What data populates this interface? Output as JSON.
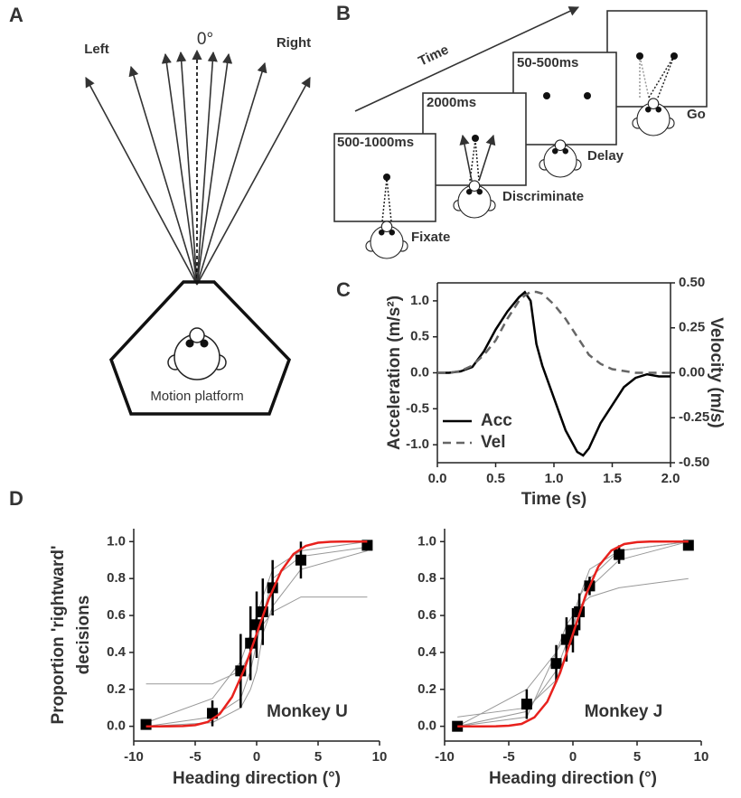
{
  "panel_labels": [
    "A",
    "B",
    "C",
    "D"
  ],
  "diagram_a": {
    "left": "Left",
    "center": "0°",
    "right": "Right",
    "platform": "Motion platform"
  },
  "diagram_b": {
    "axis": "Time",
    "stages": [
      {
        "duration": "500-1000ms",
        "name": "Fixate"
      },
      {
        "duration": "2000ms",
        "name": "Discriminate"
      },
      {
        "duration": "50-500ms",
        "name": "Delay"
      },
      {
        "name": "Go"
      }
    ]
  },
  "chart_data": [
    {
      "type": "line",
      "xlabel": "Time (s)",
      "ylabel": "Acceleration (m/s²)",
      "y2label": "Velocity (m/s)",
      "x": [
        0,
        0.1,
        0.2,
        0.3,
        0.4,
        0.5,
        0.6,
        0.7,
        0.75,
        0.8,
        0.85,
        0.9,
        1.0,
        1.1,
        1.2,
        1.25,
        1.3,
        1.4,
        1.5,
        1.6,
        1.7,
        1.8,
        1.9,
        2.0
      ],
      "series": [
        {
          "name": "Acc",
          "color": "#000000",
          "style": "solid",
          "values": [
            0,
            0,
            0.02,
            0.08,
            0.3,
            0.6,
            0.85,
            1.05,
            1.12,
            1.0,
            0.4,
            0.1,
            -0.35,
            -0.8,
            -1.1,
            -1.15,
            -1.05,
            -0.7,
            -0.45,
            -0.2,
            -0.07,
            -0.02,
            -0.05,
            -0.05
          ]
        },
        {
          "name": "Vel",
          "color": "#666666",
          "style": "dashed",
          "axis": "y2",
          "values": [
            0,
            0,
            0.01,
            0.04,
            0.1,
            0.18,
            0.3,
            0.4,
            0.43,
            0.45,
            0.45,
            0.44,
            0.38,
            0.3,
            0.2,
            0.15,
            0.1,
            0.05,
            0.02,
            0.01,
            0,
            0,
            0,
            0
          ]
        }
      ],
      "xlim": [
        0,
        2
      ],
      "xticks": [
        {
          "value": 0,
          "label": "0.0"
        },
        {
          "value": 0.5,
          "label": "0.5"
        },
        {
          "value": 1,
          "label": "1.0"
        },
        {
          "value": 1.5,
          "label": "1.5"
        },
        {
          "value": 2,
          "label": "2.0"
        }
      ],
      "ylim": [
        -1.25,
        1.25
      ],
      "yticks": [
        {
          "value": -1,
          "label": "-1.0"
        },
        {
          "value": -0.5,
          "label": "-0.5"
        },
        {
          "value": 0,
          "label": "0.0"
        },
        {
          "value": 0.5,
          "label": "0.5"
        },
        {
          "value": 1,
          "label": "1.0"
        }
      ],
      "y2lim": [
        -0.5,
        0.5
      ],
      "y2ticks": [
        {
          "value": -0.5,
          "label": "-0.50"
        },
        {
          "value": -0.25,
          "label": "-0.25"
        },
        {
          "value": 0,
          "label": "0.00"
        },
        {
          "value": 0.25,
          "label": "0.25"
        },
        {
          "value": 0.5,
          "label": "0.50"
        }
      ],
      "legend": "lower left",
      "frame": true
    },
    {
      "type": "scatter",
      "xlabel": "Heading direction (°)",
      "ylabel_lines": [
        "Proportion 'rightward'",
        "decisions"
      ],
      "annotation": "Monkey U",
      "x": [
        -9,
        -3.6,
        -1.3,
        -0.5,
        0,
        0.5,
        1.3,
        3.6,
        9
      ],
      "series": [
        {
          "color": "#999999",
          "style": "line",
          "values": [
            0,
            0.05,
            0.15,
            0.3,
            0.45,
            0.6,
            0.8,
            0.92,
            0.97
          ]
        },
        {
          "color": "#999999",
          "style": "line",
          "values": [
            0.02,
            0.15,
            0.35,
            0.5,
            0.6,
            0.7,
            0.85,
            0.95,
            1
          ]
        },
        {
          "color": "#999999",
          "style": "line",
          "values": [
            0.23,
            0.23,
            0.3,
            0.4,
            0.5,
            0.55,
            0.62,
            0.7,
            0.7
          ]
        },
        {
          "color": "#999999",
          "style": "line",
          "values": [
            0,
            0.02,
            0.1,
            0.2,
            0.3,
            0.5,
            0.65,
            0.85,
            0.95
          ]
        },
        {
          "color": "#000000",
          "style": "markers",
          "values": [
            0.01,
            0.07,
            0.3,
            0.45,
            0.55,
            0.62,
            0.75,
            0.9,
            0.98
          ],
          "errors": [
            0.02,
            0.07,
            0.2,
            0.2,
            0.18,
            0.18,
            0.15,
            0.1,
            0.02
          ]
        },
        {
          "color": "#e8211d",
          "style": "solid",
          "x": [
            -9,
            -8,
            -7,
            -6,
            -5,
            -4,
            -3,
            -2,
            -1,
            0,
            1,
            2,
            3,
            4,
            5,
            6,
            7,
            8,
            9
          ],
          "values": [
            0,
            0,
            0.0002,
            0.0013,
            0.006,
            0.023,
            0.067,
            0.159,
            0.309,
            0.5,
            0.691,
            0.841,
            0.933,
            0.977,
            0.994,
            0.999,
            1,
            1,
            1
          ]
        }
      ],
      "xlim": [
        -10,
        10
      ],
      "xticks": [
        -10,
        -5,
        0,
        5,
        10
      ],
      "ylim": [
        -0.08,
        1.07
      ],
      "yticks": [
        {
          "value": 0,
          "label": "0.0"
        },
        {
          "value": 0.2,
          "label": "0.2"
        },
        {
          "value": 0.4,
          "label": "0.4"
        },
        {
          "value": 0.6,
          "label": "0.6"
        },
        {
          "value": 0.8,
          "label": "0.8"
        },
        {
          "value": 1,
          "label": "1.0"
        }
      ]
    },
    {
      "type": "scatter",
      "xlabel": "Heading direction (°)",
      "annotation": "Monkey J",
      "x": [
        -9,
        -3.6,
        -1.3,
        -0.5,
        0,
        0.5,
        1.3,
        3.6,
        9
      ],
      "series": [
        {
          "color": "#999999",
          "style": "line",
          "values": [
            0,
            0.08,
            0.3,
            0.45,
            0.5,
            0.6,
            0.75,
            0.9,
            1
          ]
        },
        {
          "color": "#999999",
          "style": "line",
          "values": [
            0,
            0.2,
            0.4,
            0.5,
            0.55,
            0.65,
            0.7,
            0.75,
            0.8
          ]
        },
        {
          "color": "#999999",
          "style": "line",
          "values": [
            0.05,
            0.1,
            0.25,
            0.4,
            0.5,
            0.7,
            0.85,
            0.95,
            1
          ]
        },
        {
          "color": "#999999",
          "style": "line",
          "values": [
            0,
            0.05,
            0.4,
            0.55,
            0.6,
            0.7,
            0.8,
            0.95,
            1
          ]
        },
        {
          "color": "#000000",
          "style": "markers",
          "values": [
            0,
            0.12,
            0.34,
            0.47,
            0.52,
            0.62,
            0.76,
            0.93,
            0.98
          ],
          "errors": [
            0.01,
            0.08,
            0.1,
            0.12,
            0.12,
            0.1,
            0.05,
            0.05,
            0.02
          ]
        },
        {
          "color": "#e8211d",
          "style": "solid",
          "x": [
            -9,
            -8,
            -7,
            -6,
            -5,
            -4,
            -3,
            -2,
            -1,
            0,
            1,
            2,
            3,
            4,
            5,
            6,
            7,
            8,
            9
          ],
          "values": [
            0,
            0,
            0,
            0.0004,
            0.003,
            0.013,
            0.048,
            0.133,
            0.289,
            0.5,
            0.711,
            0.867,
            0.952,
            0.987,
            0.997,
            1,
            1,
            1,
            1
          ]
        }
      ],
      "xlim": [
        -10,
        10
      ],
      "xticks": [
        -10,
        -5,
        0,
        5,
        10
      ],
      "ylim": [
        -0.08,
        1.07
      ],
      "yticks": [
        {
          "value": 0,
          "label": "0.0"
        },
        {
          "value": 0.2,
          "label": "0.2"
        },
        {
          "value": 0.4,
          "label": "0.4"
        },
        {
          "value": 0.6,
          "label": "0.6"
        },
        {
          "value": 0.8,
          "label": "0.8"
        },
        {
          "value": 1,
          "label": "1.0"
        }
      ]
    }
  ]
}
